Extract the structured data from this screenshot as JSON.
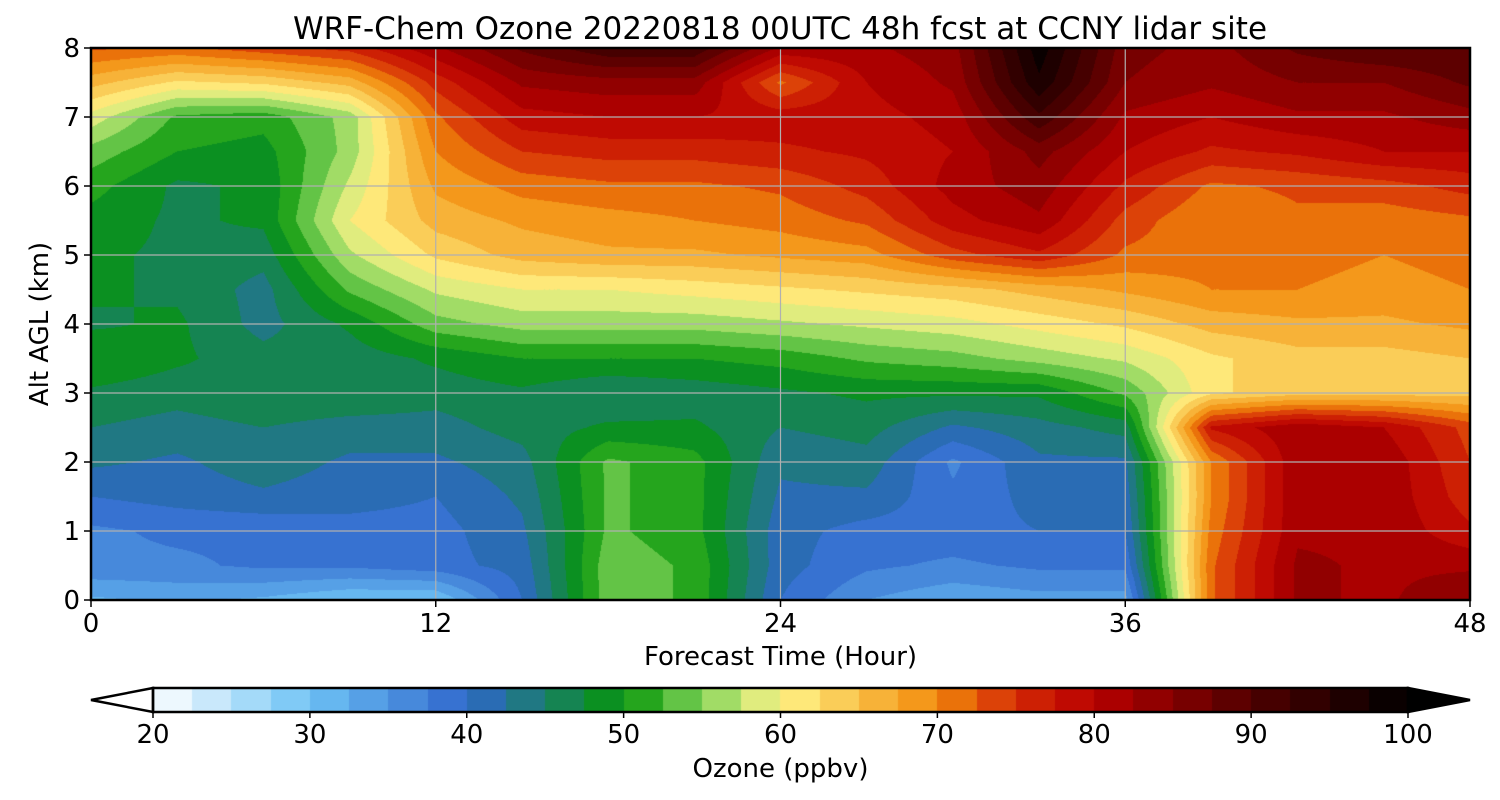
{
  "chart_data": {
    "type": "heatmap",
    "title": "WRF-Chem Ozone  20220818 00UTC 48h fcst at CCNY lidar site",
    "xlabel": "Forecast Time (Hour)",
    "ylabel": "Alt AGL (km)",
    "xlim": [
      0,
      48
    ],
    "ylim": [
      0,
      8
    ],
    "xticks": [
      0,
      12,
      24,
      36,
      48
    ],
    "yticks": [
      0,
      1,
      2,
      3,
      4,
      5,
      6,
      7,
      8
    ],
    "grid": true,
    "x": [
      0,
      3,
      6,
      9,
      12,
      15,
      18,
      21,
      24,
      27,
      30,
      33,
      36,
      39,
      42,
      45,
      48
    ],
    "y": [
      0,
      0.5,
      1,
      1.5,
      2,
      2.5,
      3,
      3.5,
      4,
      4.5,
      5,
      5.5,
      6,
      6.5,
      7,
      7.5,
      8
    ],
    "z": [
      [
        32,
        33,
        32,
        30,
        30,
        40,
        54,
        52,
        40,
        35,
        33,
        34,
        34,
        72,
        83,
        82,
        85
      ],
      [
        37,
        37,
        38,
        38,
        39,
        41,
        54,
        52,
        41,
        38,
        37,
        38,
        38,
        72,
        83,
        82,
        82
      ],
      [
        37,
        38,
        38,
        39,
        39,
        42,
        53,
        51,
        41,
        39,
        39,
        40,
        40,
        71,
        82,
        82,
        78
      ],
      [
        40,
        41,
        42,
        41,
        40,
        43,
        53,
        51,
        42,
        42,
        38,
        41,
        41,
        70,
        82,
        82,
        76
      ],
      [
        43,
        42,
        44,
        42,
        42,
        44,
        53,
        51,
        43,
        44,
        37,
        42,
        42,
        70,
        82,
        82,
        75
      ],
      [
        45,
        44,
        45,
        44,
        44,
        46,
        48,
        48,
        45,
        46,
        42,
        44,
        46,
        78,
        82,
        80,
        74
      ],
      [
        47,
        46,
        47,
        47,
        46,
        47,
        45,
        46,
        47,
        48,
        48,
        48,
        53,
        62,
        64,
        64,
        64
      ],
      [
        50,
        48,
        46,
        46,
        48,
        50,
        50,
        50,
        51,
        53,
        54,
        56,
        58,
        62,
        64,
        64,
        65
      ],
      [
        47,
        48,
        44,
        48,
        54,
        56,
        56,
        56,
        57,
        58,
        59,
        61,
        63,
        66,
        67,
        67,
        68
      ],
      [
        48,
        47,
        44,
        53,
        58,
        60,
        60,
        61,
        62,
        63,
        64,
        66,
        68,
        70,
        70,
        69,
        70
      ],
      [
        48,
        47,
        46,
        57,
        63,
        66,
        67,
        67,
        68,
        69,
        74,
        77,
        72,
        71,
        71,
        70,
        71
      ],
      [
        49,
        47,
        48,
        60,
        66,
        68,
        69,
        70,
        71,
        73,
        79,
        82,
        74,
        70,
        72,
        71,
        72
      ],
      [
        51,
        47,
        48,
        58,
        68,
        71,
        72,
        72,
        73,
        76,
        81,
        84,
        77,
        72,
        73,
        74,
        76
      ],
      [
        54,
        50,
        49,
        56,
        70,
        75,
        76,
        76,
        77,
        78,
        80,
        86,
        80,
        77,
        78,
        80,
        80
      ],
      [
        59,
        52,
        51,
        56,
        72,
        79,
        80,
        80,
        79,
        79,
        81,
        92,
        82,
        80,
        82,
        82,
        84
      ],
      [
        66,
        62,
        63,
        66,
        76,
        83,
        84,
        84,
        72,
        80,
        83,
        97,
        85,
        83,
        85,
        85,
        88
      ],
      [
        73,
        72,
        74,
        76,
        82,
        88,
        92,
        92,
        82,
        82,
        84,
        99,
        86,
        84,
        88,
        90,
        90
      ]
    ],
    "colorbar": {
      "label": "Ozone  (ppbv)",
      "ticks": [
        20,
        30,
        40,
        50,
        60,
        70,
        80,
        90,
        100
      ],
      "min": 20,
      "max": 100,
      "extend": "both",
      "colors": [
        "#ffffff",
        "#6ec3f5",
        "#2f66cc",
        "#069609",
        "#82d35a",
        "#fff58a",
        "#f9c047",
        "#f28a0c",
        "#d42a06",
        "#b80000",
        "#500000",
        "#000000"
      ],
      "color_stops": [
        20,
        30,
        40,
        50,
        55,
        60,
        65,
        70,
        75,
        80,
        90,
        100
      ]
    }
  }
}
